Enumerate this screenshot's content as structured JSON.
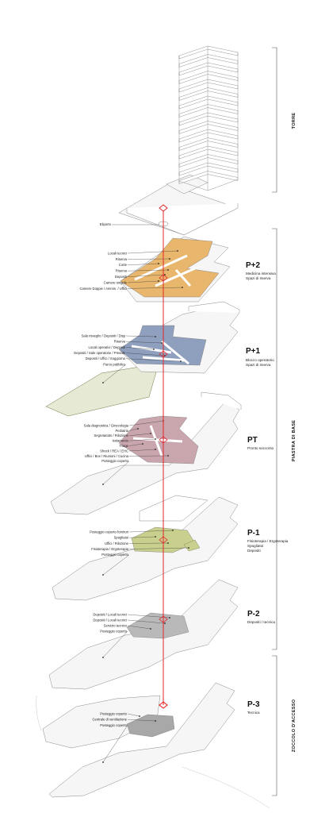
{
  "colors": {
    "axis": "#e3262b",
    "p2": "#e8b66c",
    "p1": "#8f9fbe",
    "pt": "#c9a6ad",
    "pm1": "#c9cf8c",
    "pm2": "#b9b9b9",
    "pm3": "#a8a8a8",
    "park": "#e6ead4"
  },
  "sections": {
    "torre": "TORRE",
    "piastra": "PIASTRA DI BASE",
    "zoccolo": "ZOCCOLO D'ACCESSO"
  },
  "roof": {
    "label": "Eliporto"
  },
  "levels": [
    {
      "id": "p2",
      "name": "P+2",
      "desc": [
        "Medicina intensiva",
        "Spazi di riserva"
      ],
      "labels": [
        "Locali tecnici",
        "Riserva",
        "Corte",
        "Riserva",
        "Depositi",
        "Camere singole",
        "Camere Doppie / Ammin. / Uffici"
      ]
    },
    {
      "id": "p1",
      "name": "P+1",
      "desc": [
        "Blocco operatorio",
        "Spazi di riserva"
      ],
      "labels": [
        "Sala risveglio / Depositi / Disp",
        "Riserva",
        "Locali operativi / Depositi",
        "Depositi / Sale operatorie / Presale",
        "Depositi / Uffici / Soggiorno",
        "Parco pubblico"
      ]
    },
    {
      "id": "pt",
      "name": "PT",
      "desc": [
        "Pronto soccorso"
      ],
      "labels": [
        "Sala diagnostica / Ginecologia",
        "Pediatria",
        "Segretariato / Rilozione",
        "Isolamento",
        "Triage",
        "Shock / REA / EHC",
        "Uffici / Box / Riunioni / Cucina",
        "Posteggio coperto"
      ]
    },
    {
      "id": "pm1",
      "name": "P-1",
      "desc": [
        "Fisioterapia / Ergoterapia",
        "Spogliatoi",
        "Depositi"
      ],
      "labels": [
        "Posteggio coperto fornitori",
        "Spogliatoi",
        "Uffici / Rilozione",
        "Fisioterapia / Ergoterapia",
        "Posteggio coperto"
      ]
    },
    {
      "id": "pm2",
      "name": "P-2",
      "desc": [
        "Depositi / tecnica"
      ],
      "labels": [
        "Depositi / Locali tecnici",
        "Depositi / Locali tecnici",
        "Servizio tecnico",
        "Posteggio coperto"
      ]
    },
    {
      "id": "pm3",
      "name": "P-3",
      "desc": [
        "Tecnica"
      ],
      "labels": [
        "Posteggio coperto",
        "Centrale di ventilazione",
        "Posteggio coperto"
      ]
    }
  ]
}
